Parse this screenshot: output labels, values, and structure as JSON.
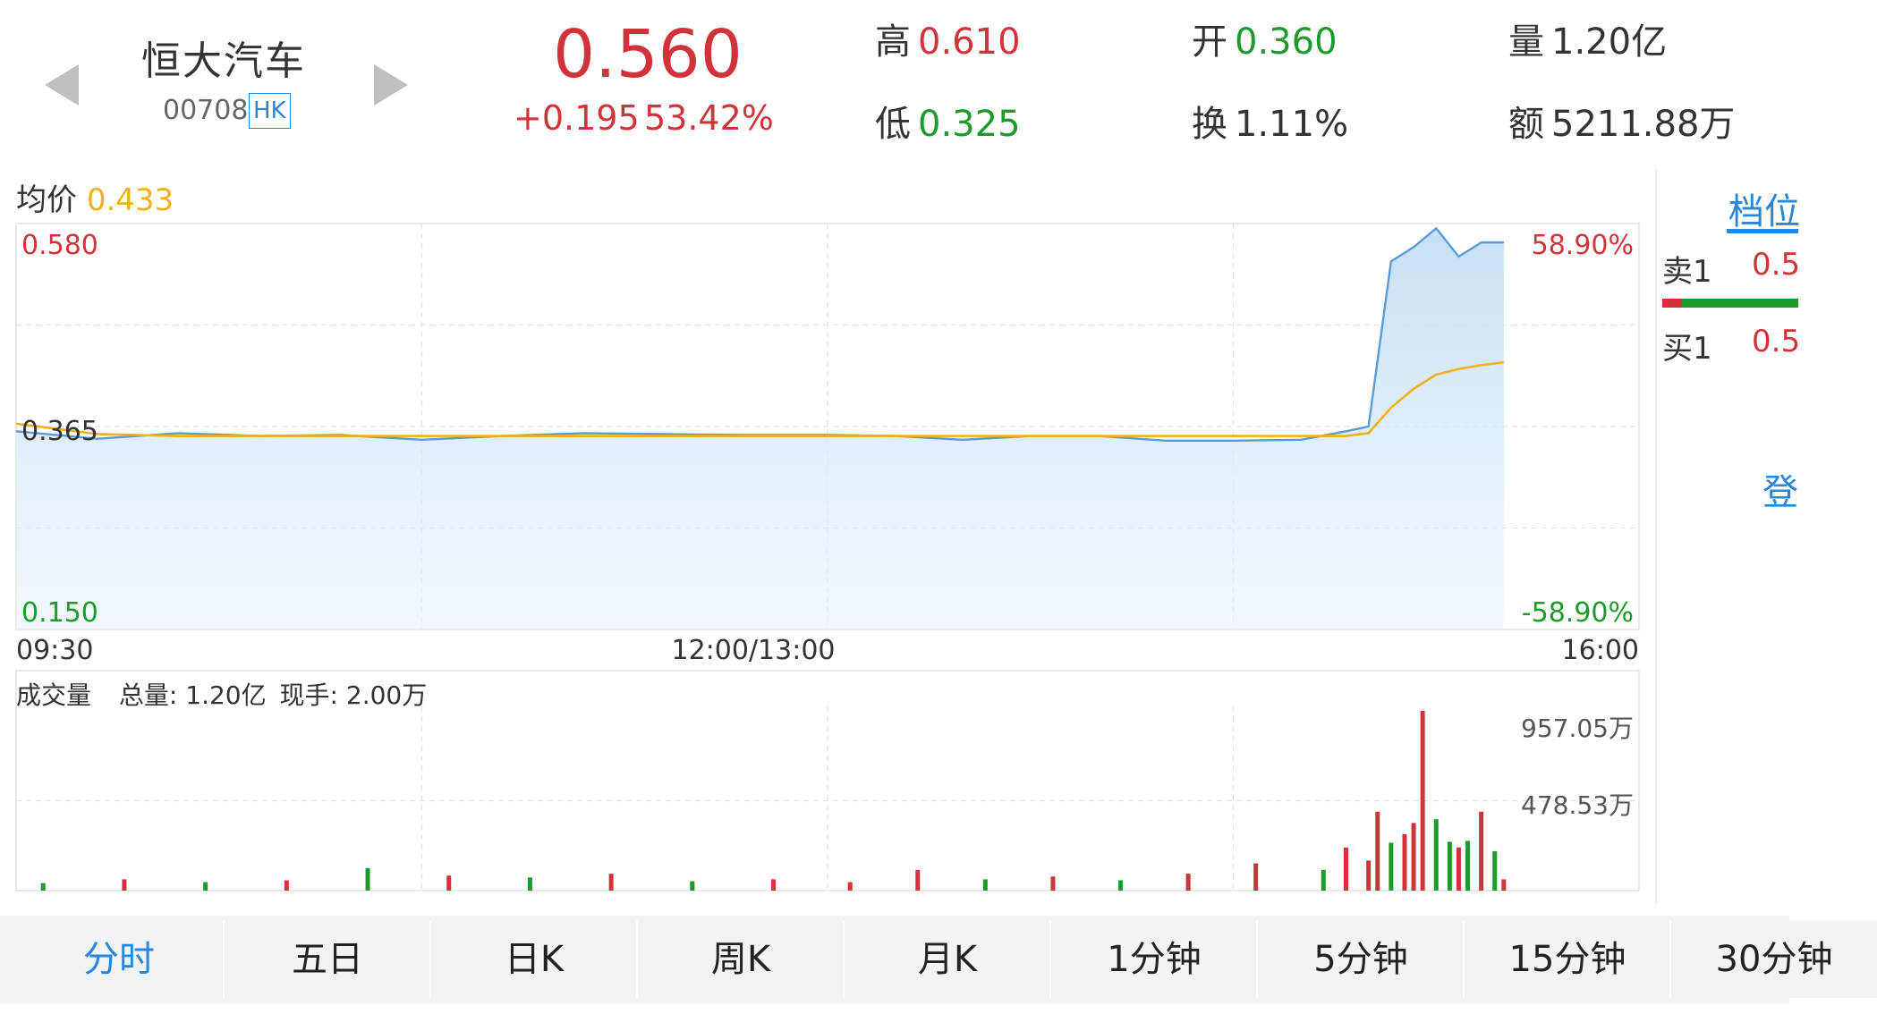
{
  "header": {
    "stock_name": "恒大汽车",
    "stock_code": "00708",
    "market_badge": "HK",
    "price": "0.560",
    "change": "+0.195",
    "change_pct": "53.42%",
    "stats": {
      "high": {
        "label": "高",
        "value": "0.610"
      },
      "low": {
        "label": "低",
        "value": "0.325"
      },
      "open": {
        "label": "开",
        "value": "0.360"
      },
      "turnover": {
        "label": "换",
        "value": "1.11%"
      },
      "volume": {
        "label": "量",
        "value": "1.20亿"
      },
      "amount": {
        "label": "额",
        "value": "5211.88万"
      }
    }
  },
  "intraday": {
    "avg_label": "均价",
    "avg_value": "0.433",
    "y_top": "0.580",
    "y_mid": "0.365",
    "y_bottom": "0.150",
    "pct_top": "58.90%",
    "pct_bottom": "-58.90%",
    "time_start": "09:30",
    "time_mid": "12:00/13:00",
    "time_end": "16:00"
  },
  "volume_panel": {
    "title": "成交量",
    "total_label": "总量:",
    "total_value": "1.20亿",
    "current_label": "现手:",
    "current_value": "2.00万",
    "scale_high": "957.05万",
    "scale_mid": "478.53万"
  },
  "order_book": {
    "tab_label": "档位",
    "sell1_label": "卖1",
    "sell1_value": "0.5",
    "buy1_label": "买1",
    "buy1_value": "0.5",
    "login_text": "登"
  },
  "tabs": [
    "分时",
    "五日",
    "日K",
    "周K",
    "月K",
    "1分钟",
    "5分钟",
    "15分钟",
    "30分钟"
  ],
  "colors": {
    "up": "#d0343a",
    "down": "#1c9a2a",
    "price_line": "#5b9bd5",
    "avg_line": "#f2b01e",
    "accent": "#2a86d9"
  },
  "chart_data": [
    {
      "type": "line",
      "title": "",
      "xlabel": "",
      "ylabel": "",
      "x_ticks": [
        "09:30",
        "12:00/13:00",
        "16:00"
      ],
      "ylim": [
        0.15,
        0.58
      ],
      "series": [
        {
          "name": "",
          "x": [
            "09:30",
            "09:45",
            "10:00",
            "10:15",
            "10:30",
            "10:45",
            "11:00",
            "11:15",
            "11:30",
            "11:45",
            "12:00",
            "13:15",
            "13:30",
            "13:45",
            "14:00",
            "14:15",
            "14:30",
            "14:45",
            "14:55",
            "15:00",
            "15:05",
            "15:10",
            "15:15",
            "15:20",
            "15:25",
            "15:30"
          ],
          "values": [
            0.36,
            0.352,
            0.358,
            0.355,
            0.356,
            0.351,
            0.355,
            0.358,
            0.357,
            0.356,
            0.356,
            0.355,
            0.351,
            0.355,
            0.355,
            0.35,
            0.35,
            0.351,
            0.36,
            0.365,
            0.54,
            0.555,
            0.575,
            0.545,
            0.56,
            0.56
          ]
        },
        {
          "name": "均价",
          "x": [
            "09:30",
            "09:45",
            "10:00",
            "12:00",
            "13:00",
            "14:45",
            "14:55",
            "15:00",
            "15:05",
            "15:10",
            "15:15",
            "15:20",
            "15:25",
            "15:30"
          ],
          "values": [
            0.368,
            0.357,
            0.355,
            0.355,
            0.355,
            0.355,
            0.355,
            0.358,
            0.385,
            0.405,
            0.42,
            0.426,
            0.43,
            0.433
          ]
        }
      ]
    },
    {
      "type": "bar",
      "title": "成交量",
      "ylim": [
        0,
        957.05
      ],
      "y_ticks": [
        "478.53万",
        "957.05万"
      ],
      "series": [
        {
          "name": "",
          "x": [
            "09:35",
            "09:50",
            "10:05",
            "10:20",
            "10:35",
            "10:50",
            "11:05",
            "11:20",
            "11:35",
            "11:50",
            "13:05",
            "13:20",
            "13:35",
            "13:50",
            "14:05",
            "14:20",
            "14:35",
            "14:50",
            "14:55",
            "15:00",
            "15:02",
            "15:05",
            "15:08",
            "15:10",
            "15:12",
            "15:15",
            "15:18",
            "15:20",
            "15:22",
            "15:25",
            "15:28",
            "15:30"
          ],
          "values": [
            40,
            60,
            45,
            55,
            120,
            80,
            70,
            90,
            50,
            60,
            45,
            110,
            60,
            75,
            55,
            90,
            145,
            110,
            230,
            160,
            420,
            255,
            300,
            360,
            957,
            380,
            260,
            230,
            265,
            420,
            210,
            60
          ],
          "colors": [
            "down",
            "up",
            "down",
            "up",
            "down",
            "up",
            "down",
            "up",
            "down",
            "up",
            "up",
            "up",
            "down",
            "up",
            "down",
            "up",
            "up",
            "down",
            "up",
            "up",
            "up",
            "down",
            "up",
            "up",
            "up",
            "down",
            "down",
            "up",
            "down",
            "up",
            "down",
            "up"
          ]
        }
      ]
    }
  ]
}
